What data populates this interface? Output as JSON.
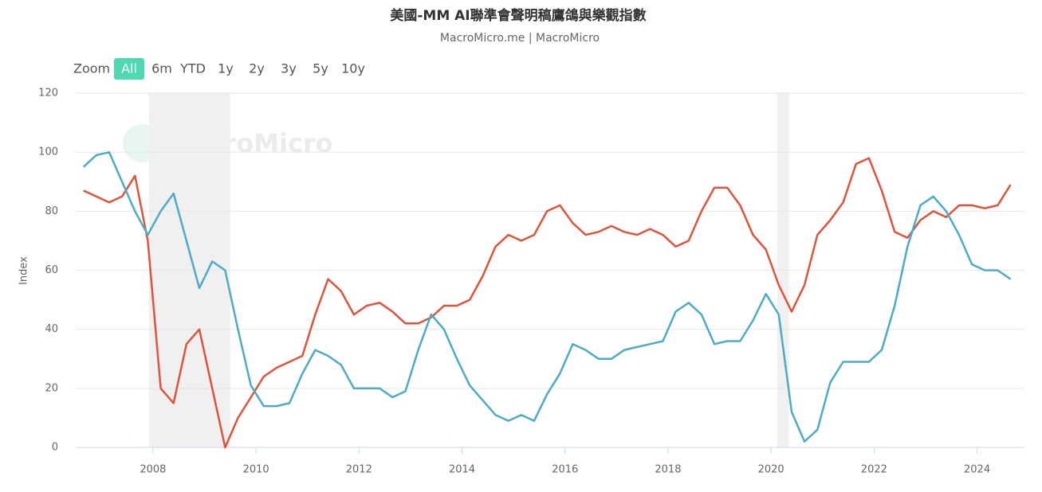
{
  "range_selector": {
    "label": "Zoom",
    "options": [
      "All",
      "6m",
      "YTD",
      "1y",
      "2y",
      "3y",
      "5y",
      "10y"
    ],
    "active": 0
  },
  "chart_data": {
    "type": "line",
    "title": "美國-MM AI聯準會聲明稿鷹鴿與樂觀指數",
    "subtitle": "MacroMicro.me | MacroMicro",
    "watermark": "MacroMicro",
    "y_label": "Index",
    "grid": true,
    "xlim": [
      2006.5,
      2024.92
    ],
    "xticks": [
      2008,
      2010,
      2012,
      2014,
      2016,
      2018,
      2020,
      2022,
      2024
    ],
    "ylim": [
      0,
      120
    ],
    "yticks": [
      0,
      20,
      40,
      60,
      80,
      100,
      120
    ],
    "shaded_ranges": [
      [
        2007.92,
        2009.5
      ],
      [
        2020.12,
        2020.35
      ]
    ],
    "shade_color": "#f0f0f0",
    "x": [
      2006.65,
      2006.9,
      2007.15,
      2007.4,
      2007.65,
      2007.9,
      2008.15,
      2008.4,
      2008.65,
      2008.9,
      2009.15,
      2009.4,
      2009.65,
      2009.9,
      2010.15,
      2010.4,
      2010.65,
      2010.9,
      2011.15,
      2011.4,
      2011.65,
      2011.9,
      2012.15,
      2012.4,
      2012.65,
      2012.9,
      2013.15,
      2013.4,
      2013.65,
      2013.9,
      2014.15,
      2014.4,
      2014.65,
      2014.9,
      2015.15,
      2015.4,
      2015.65,
      2015.9,
      2016.15,
      2016.4,
      2016.65,
      2016.9,
      2017.15,
      2017.4,
      2017.65,
      2017.9,
      2018.15,
      2018.4,
      2018.65,
      2018.9,
      2019.15,
      2019.4,
      2019.65,
      2019.9,
      2020.15,
      2020.4,
      2020.65,
      2020.9,
      2021.15,
      2021.4,
      2021.65,
      2021.9,
      2022.15,
      2022.4,
      2022.65,
      2022.9,
      2023.15,
      2023.4,
      2023.65,
      2023.9,
      2024.15,
      2024.4,
      2024.65
    ],
    "series": [
      {
        "color": "#e0533a",
        "values": [
          87,
          85,
          83,
          85,
          92,
          70,
          20,
          15,
          35,
          40,
          20,
          0,
          10,
          17,
          24,
          27,
          29,
          31,
          45,
          57,
          53,
          45,
          48,
          49,
          46,
          42,
          42,
          44,
          48,
          48,
          50,
          58,
          68,
          72,
          70,
          72,
          80,
          82,
          76,
          72,
          73,
          75,
          73,
          72,
          74,
          72,
          68,
          70,
          80,
          88,
          88,
          82,
          72,
          67,
          55,
          46,
          55,
          72,
          77,
          83,
          96,
          98,
          87,
          73,
          71,
          77,
          80,
          78,
          82,
          82,
          81,
          82,
          89
        ]
      },
      {
        "color": "#4bacc6",
        "values": [
          95,
          99,
          100,
          90,
          80,
          72,
          80,
          86,
          70,
          54,
          63,
          60,
          40,
          21,
          14,
          14,
          15,
          25,
          33,
          31,
          28,
          20,
          20,
          20,
          17,
          19,
          33,
          45,
          40,
          30,
          21,
          16,
          11,
          9,
          11,
          9,
          18,
          25,
          35,
          33,
          30,
          30,
          33,
          34,
          35,
          36,
          46,
          49,
          45,
          35,
          36,
          36,
          43,
          52,
          45,
          12,
          2,
          6,
          22,
          29,
          29,
          29,
          33,
          48,
          68,
          82,
          85,
          80,
          72,
          62,
          60,
          60,
          57
        ]
      }
    ]
  }
}
